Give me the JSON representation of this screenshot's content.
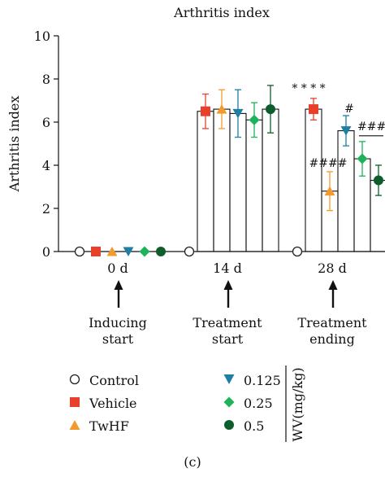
{
  "chart_data": {
    "type": "bar",
    "title": "Arthritis index",
    "ylabel": "Arthritis index",
    "ylim": [
      0,
      10
    ],
    "yticks": [
      0,
      2,
      4,
      6,
      8,
      10
    ],
    "categories": [
      "0 d",
      "14 d",
      "28 d"
    ],
    "series": [
      {
        "name": "Control",
        "color": "#222222",
        "marker": "circle-open",
        "values": [
          0,
          0,
          0
        ],
        "errors": [
          0,
          0,
          0
        ]
      },
      {
        "name": "Vehicle",
        "color": "#e8402a",
        "marker": "square",
        "values": [
          0,
          6.5,
          6.6
        ],
        "errors": [
          0,
          0.8,
          0.5
        ]
      },
      {
        "name": "TwHF",
        "color": "#f39a2e",
        "marker": "triangle-up",
        "values": [
          0,
          6.6,
          2.8
        ],
        "errors": [
          0,
          0.9,
          0.9
        ]
      },
      {
        "name": "0.125",
        "color": "#1f7fa3",
        "marker": "triangle-down",
        "values": [
          0,
          6.4,
          5.6
        ],
        "errors": [
          0,
          1.1,
          0.7
        ]
      },
      {
        "name": "0.25",
        "color": "#1db35a",
        "marker": "diamond",
        "values": [
          0,
          6.1,
          4.3
        ],
        "errors": [
          0,
          0.8,
          0.8
        ]
      },
      {
        "name": "0.5",
        "color": "#0d5e2c",
        "marker": "circle",
        "values": [
          0,
          6.6,
          3.3
        ],
        "errors": [
          0,
          1.1,
          0.7
        ]
      }
    ],
    "annotations": [
      {
        "text": "* * * *",
        "category": "28 d",
        "series": "Vehicle"
      },
      {
        "text": "####",
        "category": "28 d",
        "series": "TwHF"
      },
      {
        "text": "#",
        "category": "28 d",
        "series": "0.125"
      },
      {
        "text": "####",
        "category": "28 d",
        "series": "0.25",
        "bracket_to": "0.5"
      }
    ],
    "arrows": [
      {
        "category": "0 d",
        "label_line1": "Inducing",
        "label_line2": "start"
      },
      {
        "category": "14 d",
        "label_line1": "Treatment",
        "label_line2": "start"
      },
      {
        "category": "28 d",
        "label_line1": "Treatment",
        "label_line2": "ending"
      }
    ],
    "legend_side_label": "WV(mg/kg)"
  },
  "caption": "(c)"
}
